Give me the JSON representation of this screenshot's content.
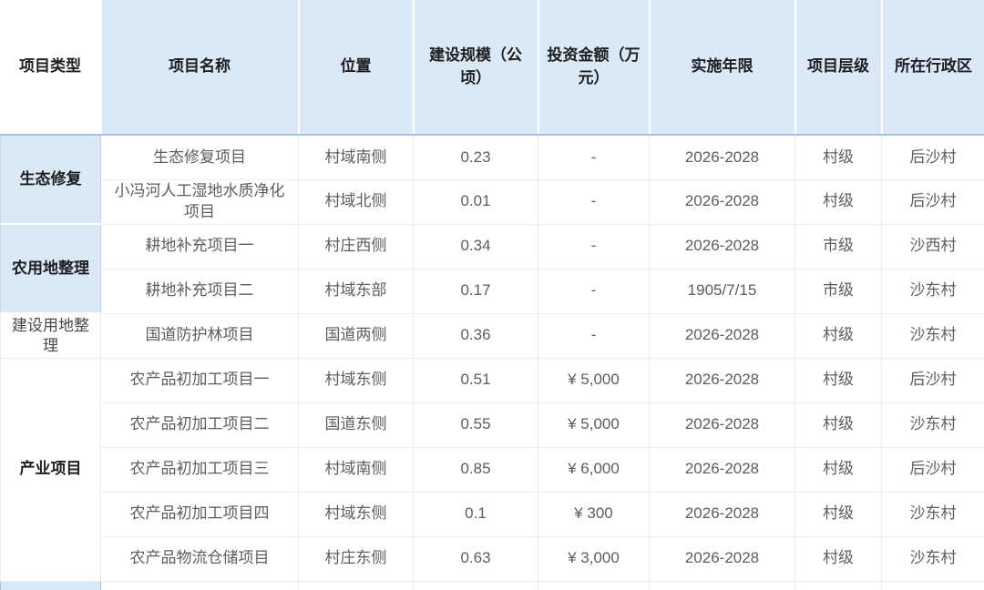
{
  "colors": {
    "header_bg": "#dbe8f5",
    "type_cell_bg": "#dbe8f5",
    "header_underline": "#a4c4e0",
    "cell_border": "#eaedf0",
    "blue_cell_border": "#c2d8eb",
    "header_text": "#1c1e21",
    "body_text": "#595e63"
  },
  "table": {
    "columns": [
      "项目类型",
      "项目名称",
      "位置",
      "建设规模（公顷）",
      "投资金额（万元）",
      "实施年限",
      "项目层级",
      "所在行政区"
    ],
    "groups": [
      {
        "type": "生态修复",
        "style": "blue-bold",
        "rows": [
          {
            "name": "生态修复项目",
            "location": "村域南侧",
            "scale": "0.23",
            "investment": "-",
            "years": "2026-2028",
            "level": "村级",
            "district": "后沙村"
          },
          {
            "name": "小冯河人工湿地水质净化项目",
            "location": "村域北侧",
            "scale": "0.01",
            "investment": "-",
            "years": "2026-2028",
            "level": "村级",
            "district": "后沙村"
          }
        ]
      },
      {
        "type": "农用地整理",
        "style": "blue-bold",
        "rows": [
          {
            "name": "耕地补充项目一",
            "location": "村庄西侧",
            "scale": "0.34",
            "investment": "-",
            "years": "2026-2028",
            "level": "市级",
            "district": "沙西村"
          },
          {
            "name": "耕地补充项目二",
            "location": "村域东部",
            "scale": "0.17",
            "investment": "-",
            "years": "1905/7/15",
            "level": "市级",
            "district": "沙东村"
          }
        ]
      },
      {
        "type": "建设用地整理",
        "style": "white-plain",
        "rows": [
          {
            "name": "国道防护林项目",
            "location": "国道两侧",
            "scale": "0.36",
            "investment": "-",
            "years": "2026-2028",
            "level": "村级",
            "district": "沙东村"
          }
        ]
      },
      {
        "type": "产业项目",
        "style": "white-bold",
        "rows": [
          {
            "name": "农产品初加工项目一",
            "location": "村域东侧",
            "scale": "0.51",
            "investment": "¥ 5,000",
            "years": "2026-2028",
            "level": "村级",
            "district": "后沙村"
          },
          {
            "name": "农产品初加工项目二",
            "location": "国道东侧",
            "scale": "0.55",
            "investment": "¥ 5,000",
            "years": "2026-2028",
            "level": "村级",
            "district": "沙东村"
          },
          {
            "name": "农产品初加工项目三",
            "location": "村域南侧",
            "scale": "0.85",
            "investment": "¥ 6,000",
            "years": "2026-2028",
            "level": "村级",
            "district": "后沙村"
          },
          {
            "name": "农产品初加工项目四",
            "location": "村域东侧",
            "scale": "0.1",
            "investment": "¥ 300",
            "years": "2026-2028",
            "level": "村级",
            "district": "沙东村"
          },
          {
            "name": "农产品物流仓储项目",
            "location": "村庄东侧",
            "scale": "0.63",
            "investment": "¥ 3,000",
            "years": "2026-2028",
            "level": "村级",
            "district": "沙东村"
          }
        ]
      }
    ],
    "partial_next_row_visible": true
  }
}
